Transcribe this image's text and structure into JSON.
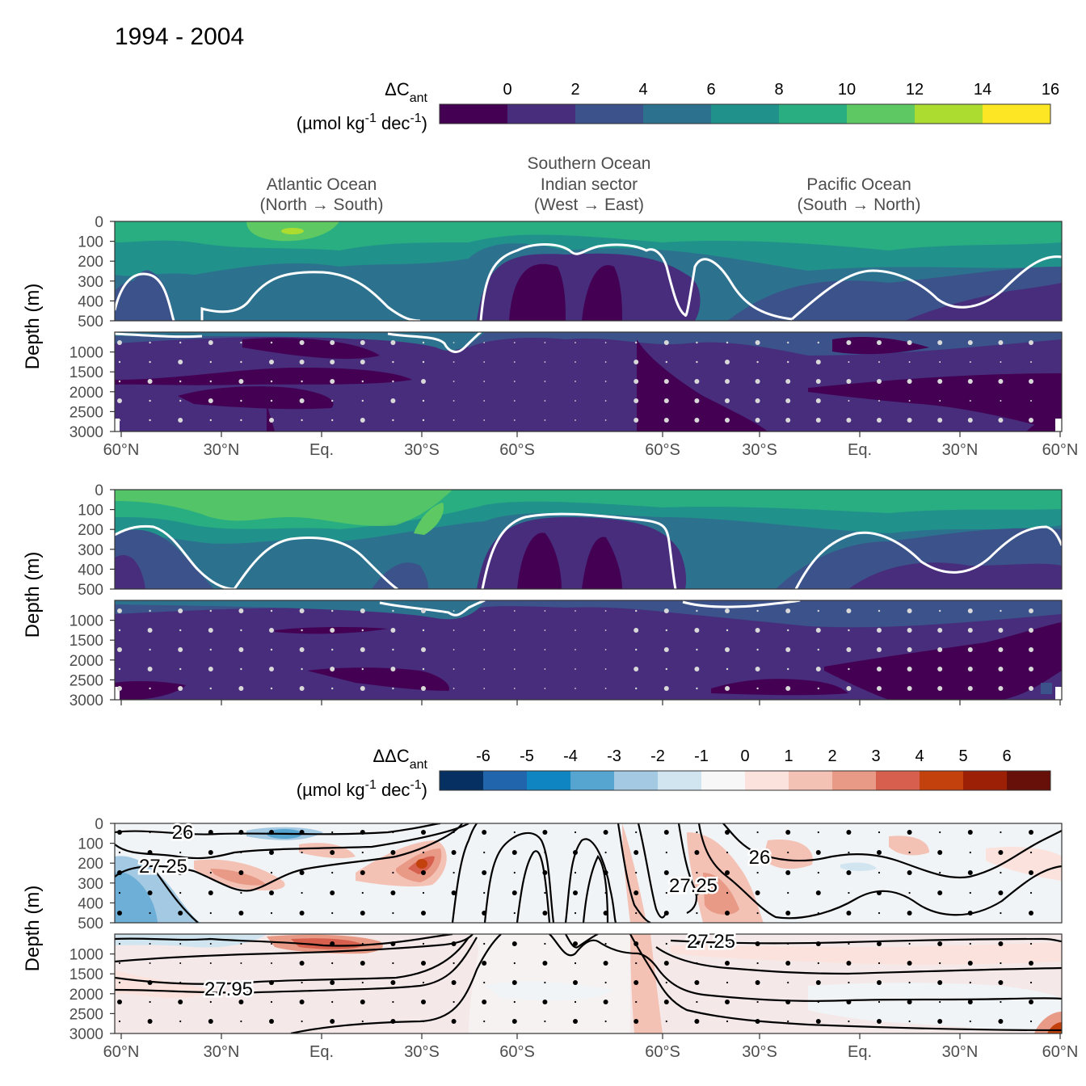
{
  "title": "1994 - 2004",
  "legend_top": {
    "label_main": "ΔC",
    "label_sub": "ant",
    "unit_line": "(µmol kg",
    "unit_sup": "-1",
    "unit_mid": " dec",
    "unit_sup2": "-1",
    "unit_end": ")",
    "ticks": [
      "0",
      "2",
      "4",
      "6",
      "8",
      "10",
      "12",
      "14",
      "16"
    ],
    "colors": [
      "#440154",
      "#472d7b",
      "#3b528b",
      "#2c728e",
      "#21918c",
      "#28ae80",
      "#5ec962",
      "#addc30",
      "#fde725"
    ]
  },
  "legend_bottom": {
    "label_main": "ΔΔC",
    "label_sub": "ant",
    "unit_line": "(µmol kg",
    "unit_sup": "-1",
    "unit_mid": " dec",
    "unit_sup2": "-1",
    "unit_end": ")",
    "ticks": [
      "-6",
      "-5",
      "-4",
      "-3",
      "-2",
      "-1",
      "0",
      "1",
      "2",
      "3",
      "4",
      "5",
      "6"
    ],
    "colors": [
      "#053061",
      "#2166ac",
      "#0f85c2",
      "#56a4d0",
      "#a3c9e3",
      "#d1e5f0",
      "#f7f7f7",
      "#fbe2dc",
      "#f4c1b5",
      "#e89a86",
      "#d6604d",
      "#c2410c",
      "#9c2006",
      "#67100a"
    ]
  },
  "regions": [
    {
      "line1": "Atlantic Ocean",
      "line2": "(North → South)"
    },
    {
      "line0": "Southern Ocean",
      "line1": "Indian sector",
      "line2": "(West → East)"
    },
    {
      "line1": "Pacific Ocean",
      "line2": "(South → North)"
    }
  ],
  "ylabel": "Depth (m)",
  "y_ticks_top": [
    "0",
    "100",
    "200",
    "300",
    "400",
    "500"
  ],
  "y_ticks_bottom": [
    "1000",
    "1500",
    "2000",
    "2500",
    "3000"
  ],
  "x_ticks": [
    "60°N",
    "30°N",
    "Eq.",
    "30°S",
    "60°S",
    "60°S",
    "30°S",
    "Eq.",
    "30°N",
    "60°N"
  ],
  "contour_labels": [
    {
      "text": "26"
    },
    {
      "text": "27.25"
    },
    {
      "text": "26"
    },
    {
      "text": "27.25"
    },
    {
      "text": "27.25"
    },
    {
      "text": "27.95"
    }
  ],
  "chart_data": [
    {
      "type": "heatmap",
      "panel": "top",
      "ylim": [
        3000,
        0
      ],
      "ylabel": "Depth (m)",
      "colorbar": "ΔCant (µmol kg-1 dec-1)",
      "colorbar_range": [
        0,
        16
      ]
    },
    {
      "type": "heatmap",
      "panel": "middle",
      "ylim": [
        3000,
        0
      ],
      "ylabel": "Depth (m)",
      "colorbar": "ΔCant (µmol kg-1 dec-1)",
      "colorbar_range": [
        0,
        16
      ]
    },
    {
      "type": "heatmap",
      "panel": "bottom",
      "ylim": [
        3000,
        0
      ],
      "ylabel": "Depth (m)",
      "colorbar": "ΔΔCant (µmol kg-1 dec-1)",
      "colorbar_range": [
        -6,
        6
      ],
      "contours": [
        "26",
        "27.25",
        "27.95"
      ]
    }
  ]
}
